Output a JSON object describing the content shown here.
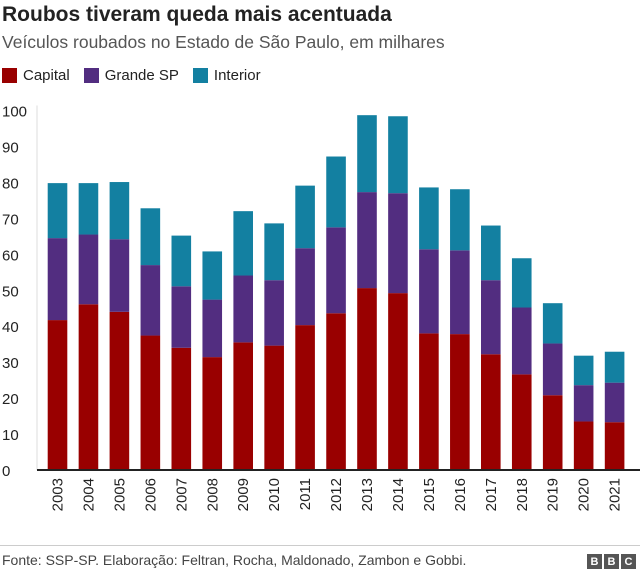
{
  "title": "Roubos tiveram queda mais acentuada",
  "subtitle": "Veículos roubados no Estado de São Paulo, em milhares",
  "source": "Fonte: SSP-SP. Elaboração: Feltran, Rocha, Maldonado, Zambon e Gobbi.",
  "logo": [
    "B",
    "B",
    "C"
  ],
  "chart_data": {
    "type": "bar",
    "stacked": true,
    "title": "Roubos tiveram queda mais acentuada",
    "xlabel": "",
    "ylabel": "",
    "ylim": [
      0,
      100
    ],
    "yticks": [
      0,
      10,
      20,
      30,
      40,
      50,
      60,
      70,
      80,
      90,
      100
    ],
    "grid": false,
    "legend": "top-left",
    "categories": [
      "2003",
      "2004",
      "2005",
      "2006",
      "2007",
      "2008",
      "2009",
      "2010",
      "2011",
      "2012",
      "2013",
      "2014",
      "2015",
      "2016",
      "2017",
      "2018",
      "2019",
      "2020",
      "2021"
    ],
    "series": [
      {
        "name": "Capital",
        "color": "#990000",
        "values": [
          41.7,
          46.1,
          44.0,
          37.4,
          34.0,
          31.4,
          35.5,
          34.6,
          40.3,
          43.6,
          50.6,
          49.2,
          38.0,
          37.8,
          32.2,
          26.6,
          20.8,
          13.5,
          13.3
        ]
      },
      {
        "name": "Grande SP",
        "color": "#522D80",
        "values": [
          22.8,
          19.4,
          20.2,
          19.6,
          17.1,
          16.0,
          18.6,
          18.2,
          21.4,
          23.9,
          26.7,
          27.8,
          23.4,
          23.3,
          20.6,
          18.6,
          14.4,
          10.1,
          11.0
        ]
      },
      {
        "name": "Interior",
        "color": "#1380A1",
        "values": [
          15.3,
          14.3,
          15.9,
          15.8,
          14.1,
          13.4,
          17.9,
          15.8,
          17.4,
          19.7,
          21.4,
          21.4,
          17.2,
          17.0,
          15.2,
          13.7,
          11.2,
          8.2,
          8.6
        ]
      }
    ]
  }
}
